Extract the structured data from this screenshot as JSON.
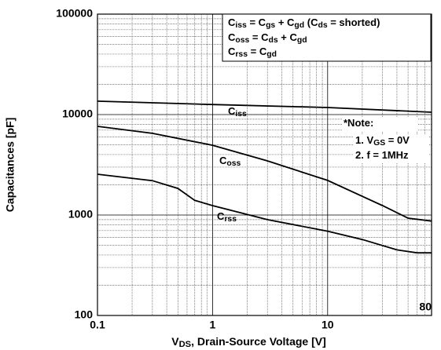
{
  "chart_data": {
    "type": "line",
    "x_label": [
      "V",
      "DS",
      ", Drain-Source Voltage [V]"
    ],
    "y_label": "Capacitances [pF]",
    "x_log": true,
    "y_log": true,
    "grid": true,
    "minor_grid": true,
    "xlim": [
      0.1,
      80
    ],
    "ylim": [
      100,
      100000
    ],
    "xticks": [
      0.1,
      1,
      10,
      80
    ],
    "yticks": [
      100,
      1000,
      10000,
      100000
    ],
    "series": [
      {
        "name": [
          "C",
          "iss"
        ],
        "color": "#000000",
        "x": [
          0.1,
          1,
          10,
          80
        ],
        "values": [
          13600,
          12600,
          11760,
          10550
        ]
      },
      {
        "name": [
          "C",
          "oss"
        ],
        "color": "#000000",
        "x": [
          0.1,
          0.3,
          1,
          3,
          10,
          30,
          50,
          80
        ],
        "values": [
          7640,
          6500,
          4950,
          3460,
          2210,
          1240,
          930,
          870
        ]
      },
      {
        "name": [
          "C",
          "rss"
        ],
        "color": "#000000",
        "x": [
          0.1,
          0.3,
          0.5,
          0.7,
          1,
          3,
          10,
          20,
          40,
          60,
          80
        ],
        "values": [
          2550,
          2200,
          1840,
          1400,
          1240,
          900,
          690,
          570,
          450,
          420,
          420
        ]
      }
    ],
    "annotations": {
      "box": [
        [
          "C",
          "iss",
          " = C",
          "gs",
          " + C",
          "gd",
          " (C",
          "ds",
          " = shorted)"
        ],
        [
          "C",
          "oss",
          " = C",
          "ds",
          " + C",
          "gd"
        ],
        [
          "C",
          "rss",
          " = C",
          "gd"
        ]
      ],
      "note": [
        [
          "*Note:"
        ],
        [
          "1. V",
          "GS",
          " = 0V"
        ],
        [
          "2. f = 1MHz"
        ]
      ]
    }
  }
}
